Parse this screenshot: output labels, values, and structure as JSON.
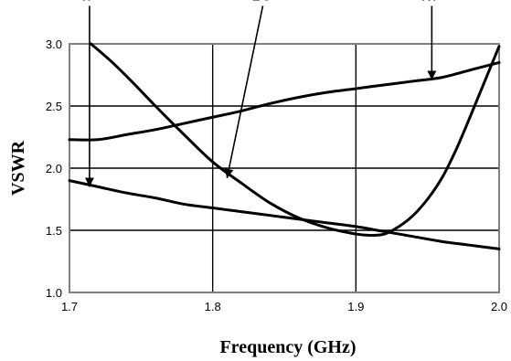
{
  "chart_data": {
    "type": "line",
    "title": "",
    "xlabel": "Frequency (GHz)",
    "ylabel": "VSWR",
    "xlim": [
      1.7,
      2.0
    ],
    "ylim": [
      1.0,
      3.0
    ],
    "x_ticks": [
      "1.7",
      "1.8",
      "1.9",
      "2.0"
    ],
    "y_ticks": [
      "1.0",
      "1.5",
      "2.0",
      "2.5",
      "3.0"
    ],
    "grid": true,
    "legend": "none",
    "series": [
      {
        "name": "IF",
        "x": [
          1.7,
          1.72,
          1.74,
          1.76,
          1.78,
          1.8,
          1.82,
          1.84,
          1.86,
          1.88,
          1.9,
          1.92,
          1.94,
          1.96,
          1.98,
          2.0
        ],
        "y": [
          1.9,
          1.85,
          1.8,
          1.76,
          1.71,
          1.68,
          1.65,
          1.62,
          1.59,
          1.56,
          1.53,
          1.49,
          1.45,
          1.41,
          1.38,
          1.35
        ]
      },
      {
        "name": "LO",
        "x": [
          1.715,
          1.73,
          1.745,
          1.76,
          1.78,
          1.8,
          1.82,
          1.84,
          1.86,
          1.88,
          1.9,
          1.91,
          1.92,
          1.93,
          1.94,
          1.95,
          1.96,
          1.97,
          1.98,
          1.99,
          2.0
        ],
        "y": [
          3.0,
          2.85,
          2.68,
          2.5,
          2.27,
          2.05,
          1.88,
          1.72,
          1.6,
          1.52,
          1.47,
          1.46,
          1.47,
          1.53,
          1.62,
          1.75,
          1.92,
          2.15,
          2.42,
          2.7,
          2.98
        ]
      },
      {
        "name": "RF",
        "x": [
          1.7,
          1.72,
          1.74,
          1.76,
          1.78,
          1.8,
          1.82,
          1.84,
          1.86,
          1.88,
          1.9,
          1.92,
          1.94,
          1.96,
          1.98,
          2.0
        ],
        "y": [
          2.23,
          2.23,
          2.27,
          2.31,
          2.36,
          2.41,
          2.46,
          2.52,
          2.57,
          2.61,
          2.64,
          2.67,
          2.7,
          2.73,
          2.79,
          2.85
        ]
      }
    ],
    "annotations": [
      {
        "text": "IF",
        "label_x": 1.714,
        "label_y": 3.35,
        "target_x": 1.714,
        "target_y": 1.85
      },
      {
        "text": "LO",
        "label_x": 1.835,
        "label_y": 3.35,
        "target_x": 1.81,
        "target_y": 1.92
      },
      {
        "text": "RF",
        "label_x": 1.953,
        "label_y": 3.35,
        "target_x": 1.953,
        "target_y": 2.71
      }
    ]
  }
}
